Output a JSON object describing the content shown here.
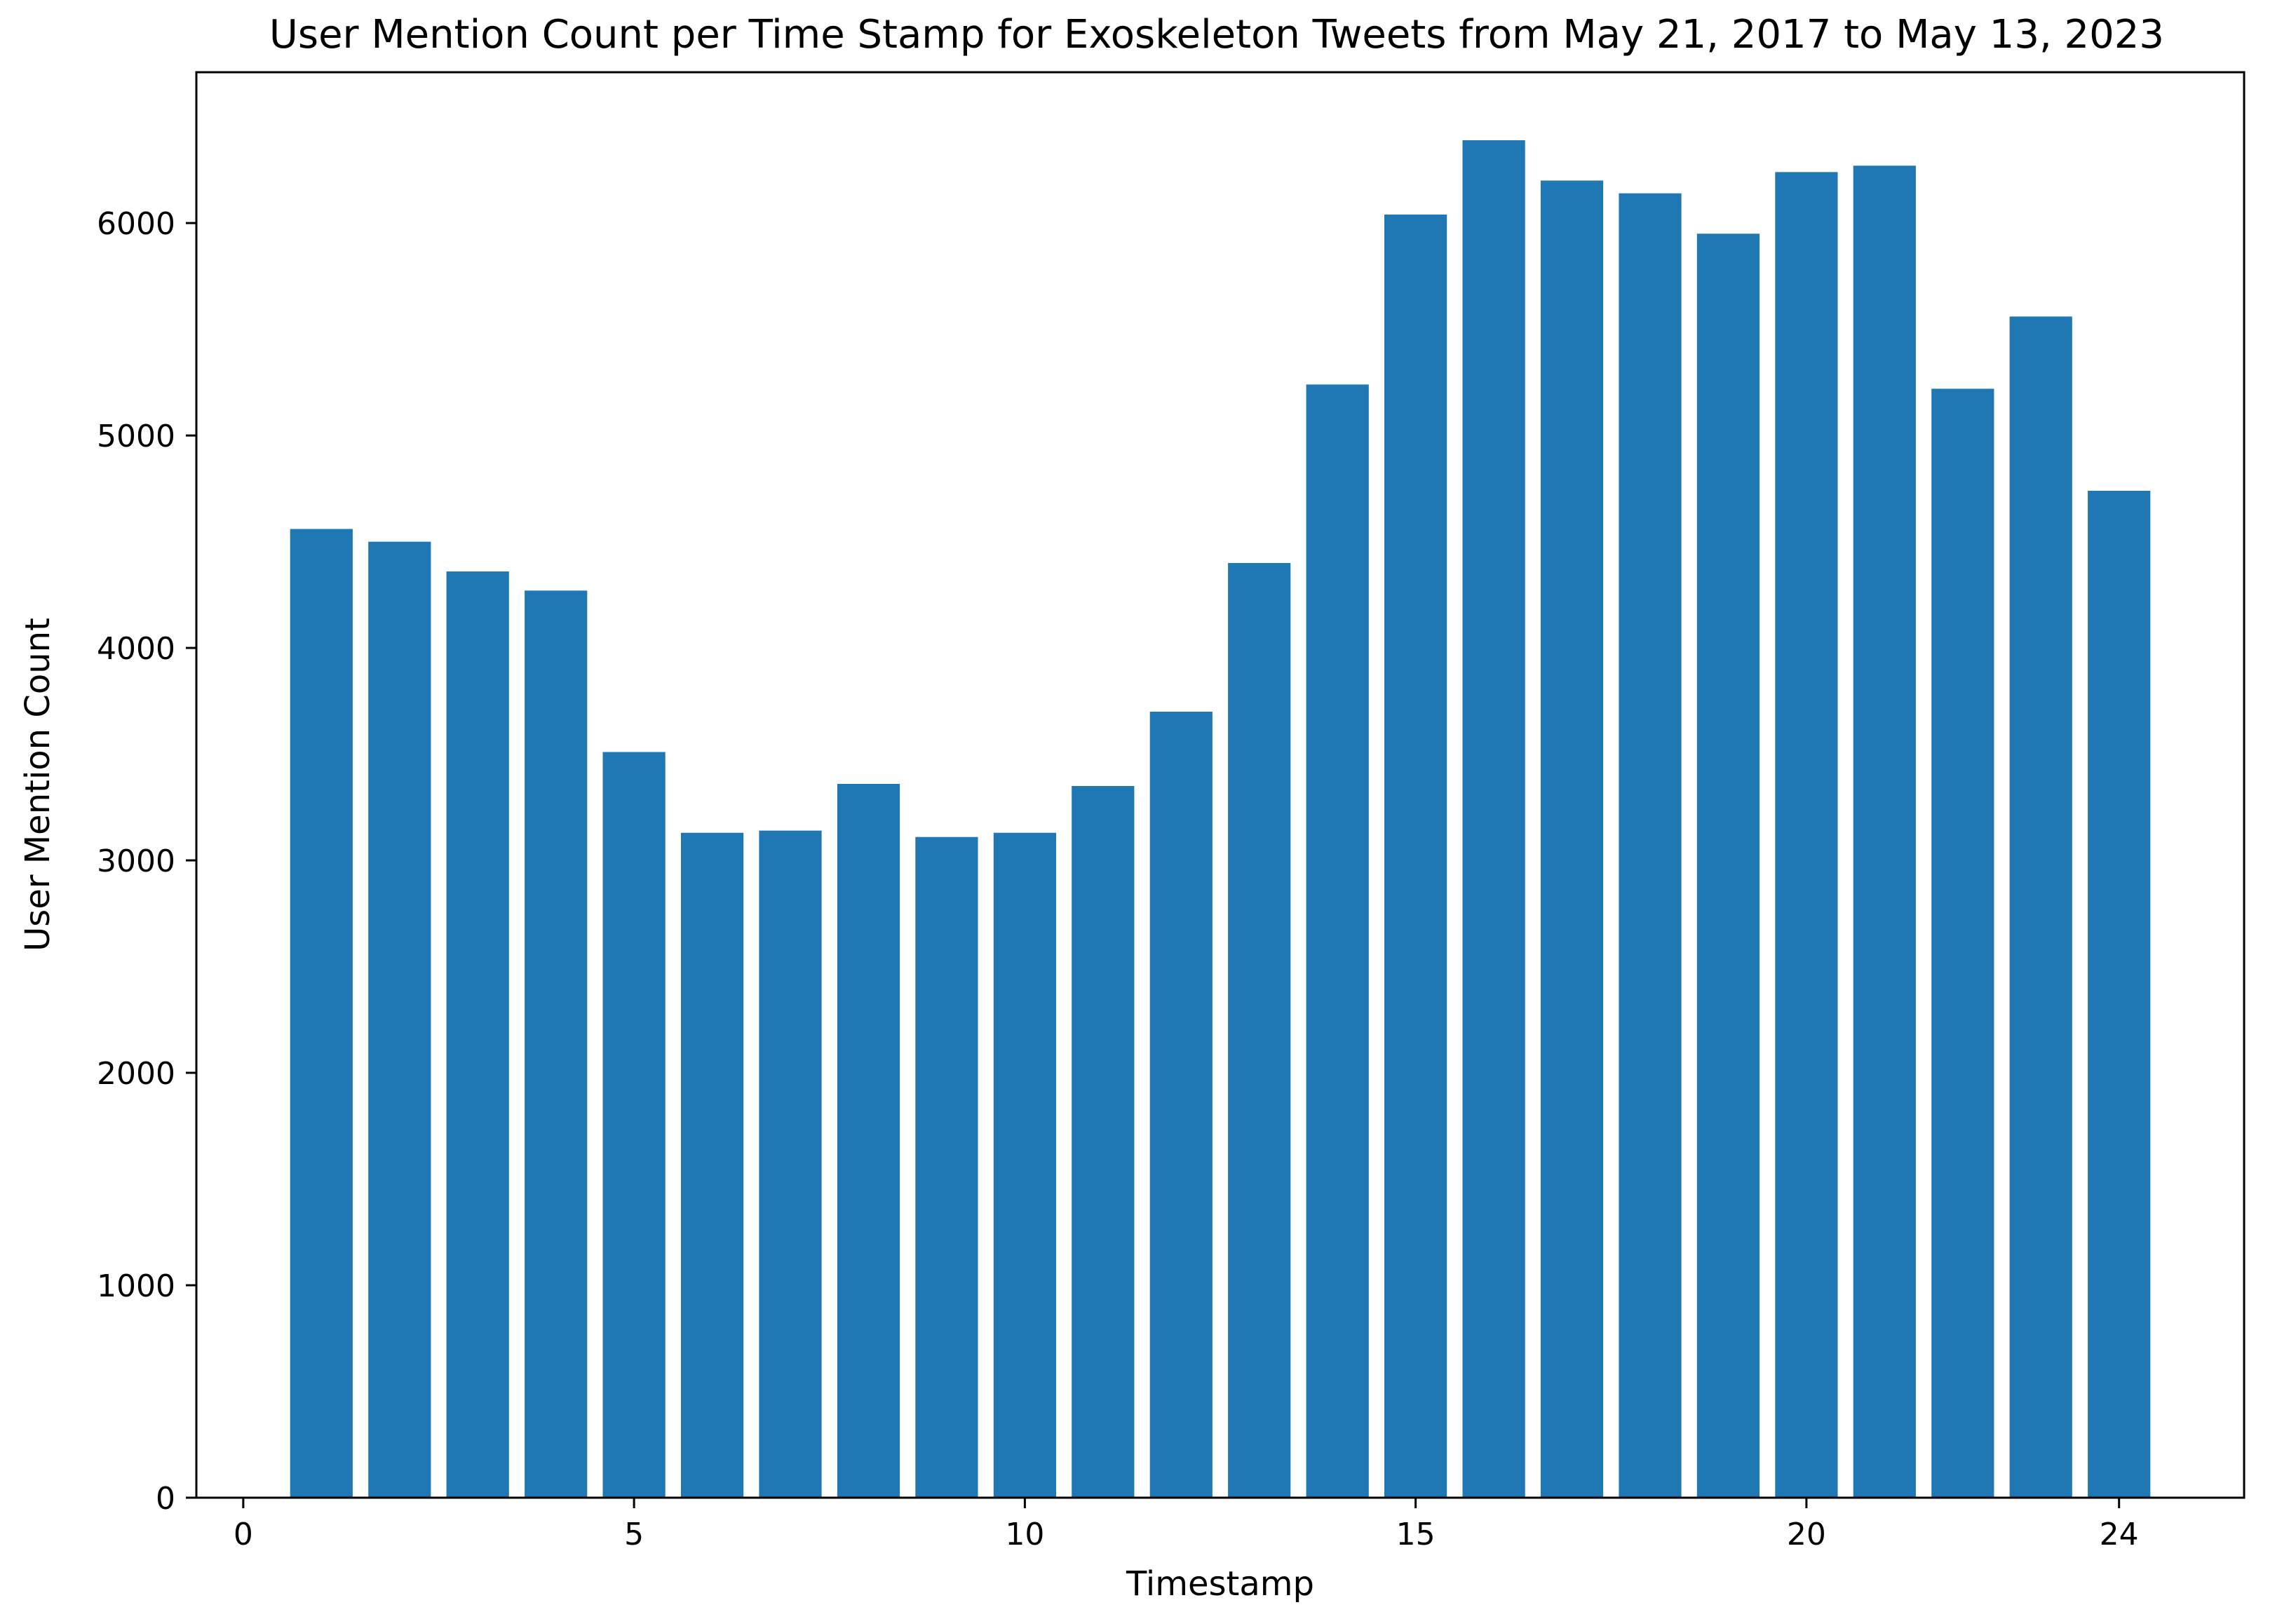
{
  "chart_data": {
    "type": "bar",
    "title": "User Mention Count per Time Stamp for Exoskeleton Tweets from May 21, 2017 to May 13, 2023",
    "xlabel": "Timestamp",
    "ylabel": "User Mention Count",
    "x": [
      1,
      2,
      3,
      4,
      5,
      6,
      7,
      8,
      9,
      10,
      11,
      12,
      13,
      14,
      15,
      16,
      17,
      18,
      19,
      20,
      21,
      22,
      23,
      24
    ],
    "values": [
      4560,
      4500,
      4360,
      4270,
      3510,
      3130,
      3140,
      3360,
      3110,
      3130,
      3350,
      3700,
      4400,
      5240,
      6040,
      6390,
      6200,
      6140,
      5950,
      6240,
      6270,
      5220,
      5560,
      4740
    ],
    "xlim": [
      -0.6,
      25.6
    ],
    "ylim": [
      0,
      6710
    ],
    "xticks": [
      0,
      5,
      10,
      15,
      20,
      24
    ],
    "yticks": [
      0,
      1000,
      2000,
      3000,
      4000,
      5000,
      6000
    ],
    "bar_color": "#1f77b4",
    "grid": false,
    "legend": "none"
  }
}
